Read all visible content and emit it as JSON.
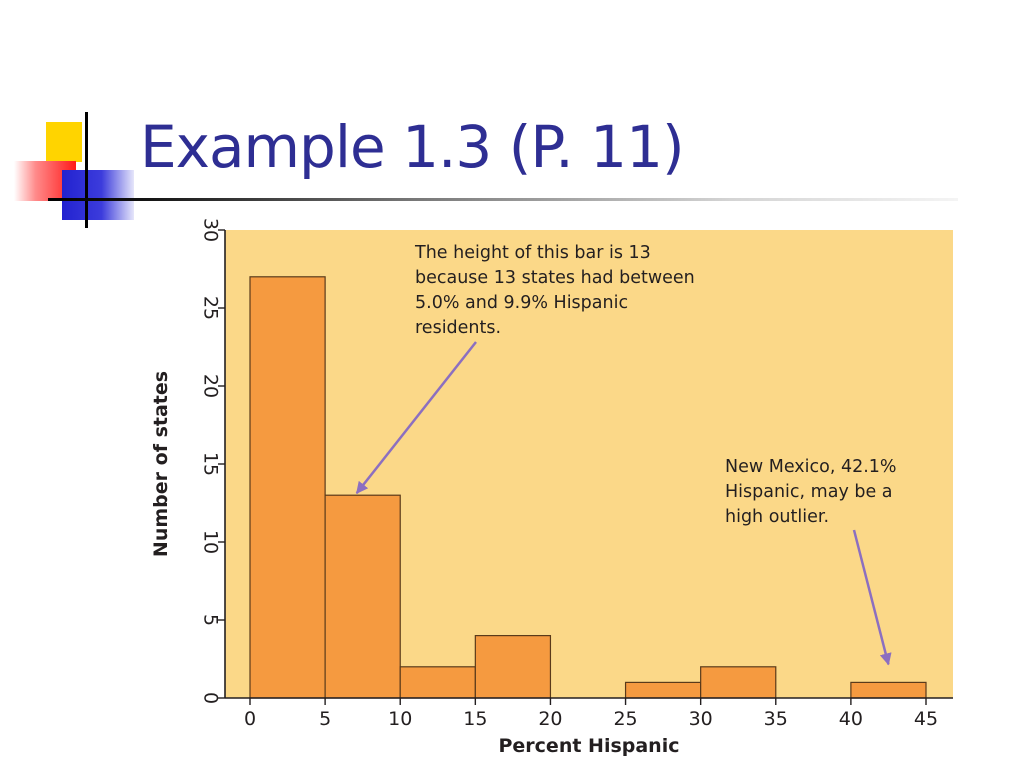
{
  "slide": {
    "title": "Example 1.3 (P. 11)"
  },
  "colors": {
    "title": "#2e2e93",
    "plot_background": "#fbd888",
    "bar_fill": "#f59a40",
    "bar_stroke": "#5a3a1a",
    "annotation_arrow": "#8c6fc0",
    "axis": "#231f20"
  },
  "chart_data": {
    "type": "bar",
    "histogram": true,
    "bin_edges": [
      0,
      5,
      10,
      15,
      20,
      25,
      30,
      35,
      40,
      45
    ],
    "values": [
      27,
      13,
      2,
      4,
      0,
      1,
      2,
      0,
      1
    ],
    "xlabel": "Percent Hispanic",
    "ylabel": "Number of states",
    "xlim": [
      0,
      45
    ],
    "ylim": [
      0,
      30
    ],
    "x_ticks": [
      "0",
      "5",
      "10",
      "15",
      "20",
      "25",
      "30",
      "35",
      "40",
      "45"
    ],
    "y_ticks": [
      "0",
      "5",
      "10",
      "15",
      "20",
      "25",
      "30"
    ],
    "grid": false,
    "annotations": [
      {
        "lines": [
          "The height of this bar is 13",
          "because 13 states had between",
          "5.0% and 9.9% Hispanic",
          "residents."
        ],
        "arrow_to": {
          "x": 7.5,
          "y": 13
        }
      },
      {
        "lines": [
          "New Mexico, 42.1%",
          "Hispanic, may be a",
          "high outlier."
        ],
        "arrow_to": {
          "x": 42.5,
          "y": 1
        }
      }
    ]
  }
}
